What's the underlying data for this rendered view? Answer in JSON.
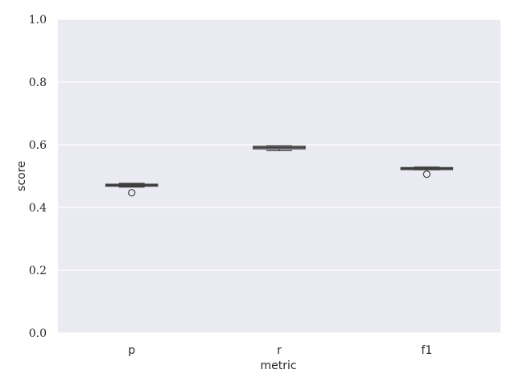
{
  "chart_data": {
    "type": "box",
    "xlabel": "metric",
    "ylabel": "score",
    "categories": [
      "p",
      "r",
      "f1"
    ],
    "ylim": [
      0.0,
      1.0
    ],
    "yticks": [
      "0.0",
      "0.2",
      "0.4",
      "0.6",
      "0.8",
      "1.0"
    ],
    "grid": true,
    "boxes": [
      {
        "category": "p",
        "whisker_low": 0.465,
        "q1": 0.468,
        "median": 0.471,
        "q3": 0.474,
        "whisker_high": 0.477,
        "outliers": [
          0.447
        ]
      },
      {
        "category": "r",
        "whisker_low": 0.581,
        "q1": 0.587,
        "median": 0.591,
        "q3": 0.595,
        "whisker_high": 0.597,
        "outliers": []
      },
      {
        "category": "f1",
        "whisker_low": 0.52,
        "q1": 0.521,
        "median": 0.524,
        "q3": 0.527,
        "whisker_high": 0.529,
        "outliers": [
          0.506
        ]
      }
    ],
    "colors": {
      "background": "#eaeaf2",
      "grid": "#ffffff",
      "box_fill": "#ffffff",
      "box_edge": "#3f3f3f"
    }
  }
}
